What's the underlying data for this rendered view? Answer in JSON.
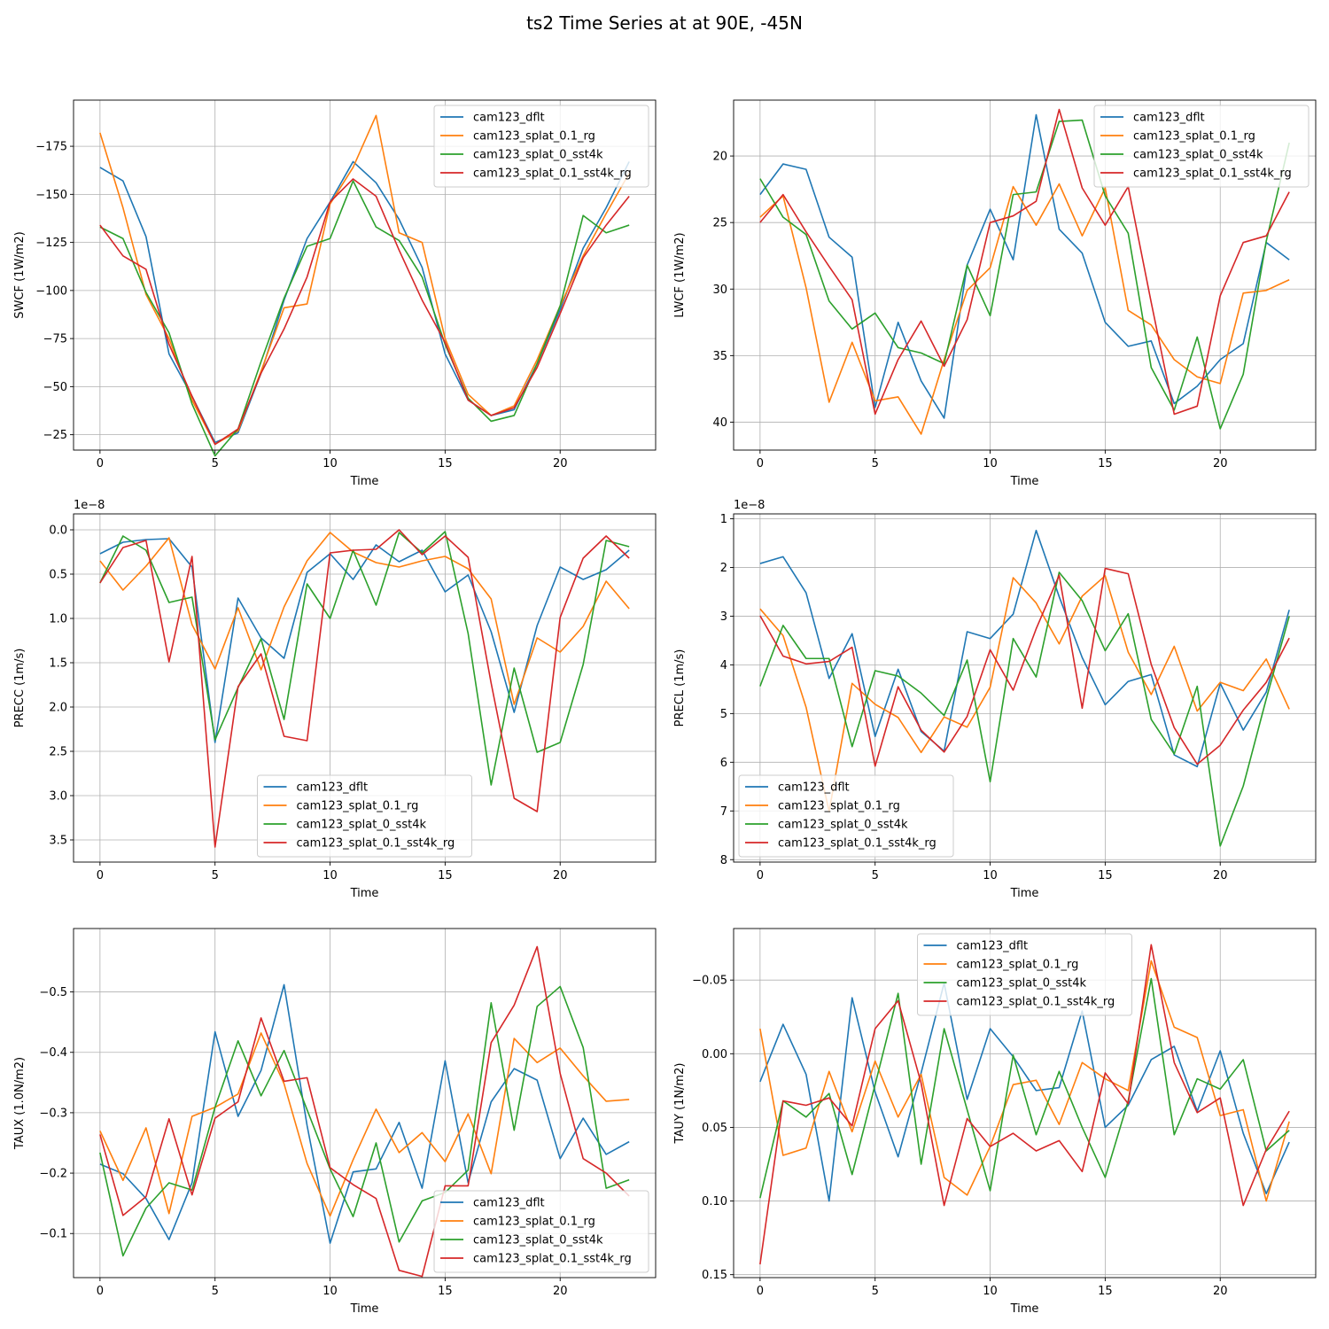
{
  "figure_title": "ts2 Time Series at at 90E, -45N",
  "colors": {
    "cam123_dflt": "#1f77b4",
    "cam123_splat_0.1_rg": "#ff7f0e",
    "cam123_splat_0_sst4k": "#2ca02c",
    "cam123_splat_0.1_sst4k_rg": "#d62728"
  },
  "chart_data": [
    {
      "type": "line",
      "title": "",
      "xlabel": "Time",
      "ylabel": "SWCF (1W/m2)",
      "y_inverted": true,
      "xlim": [
        -1.15,
        24.15
      ],
      "ylim": [
        -17,
        -199
      ],
      "xticks": [
        0,
        5,
        10,
        15,
        20
      ],
      "yticks": [
        -175,
        -150,
        -125,
        -100,
        -75,
        -50,
        -25
      ],
      "ytick_labels": [
        "−175",
        "−150",
        "−125",
        "−100",
        "−75",
        "−50",
        "−25"
      ],
      "offset_text": "",
      "grid": true,
      "legend_loc": "upper right",
      "x": [
        0,
        1,
        2,
        3,
        4,
        5,
        6,
        7,
        8,
        9,
        10,
        11,
        12,
        13,
        14,
        15,
        16,
        17,
        18,
        19,
        20,
        21,
        22,
        23
      ],
      "series": [
        {
          "name": "cam123_dflt",
          "values": [
            -164,
            -157,
            -128,
            -67,
            -45,
            -21,
            -26,
            -57,
            -95,
            -127,
            -146,
            -167,
            -156,
            -137,
            -112,
            -67,
            -43,
            -35,
            -38,
            -62,
            -90,
            -122,
            -143,
            -167
          ]
        },
        {
          "name": "cam123_splat_0.1_rg",
          "values": [
            -182,
            -143,
            -98,
            -75,
            -43,
            -20,
            -27,
            -58,
            -91,
            -93,
            -145,
            -164,
            -191,
            -130,
            -125,
            -75,
            -46,
            -35,
            -40,
            -64,
            -92,
            -118,
            -140,
            -161
          ]
        },
        {
          "name": "cam123_splat_0_sst4k",
          "values": [
            -133,
            -127,
            -99,
            -78,
            -41,
            -14,
            -28,
            -63,
            -96,
            -123,
            -127,
            -157,
            -133,
            -126,
            -107,
            -72,
            -44,
            -32,
            -35,
            -62,
            -92,
            -139,
            -130,
            -134
          ]
        },
        {
          "name": "cam123_splat_0.1_sst4k_rg",
          "values": [
            -134,
            -118,
            -111,
            -72,
            -45,
            -20,
            -28,
            -57,
            -80,
            -107,
            -146,
            -158,
            -149,
            -121,
            -95,
            -73,
            -43,
            -35,
            -39,
            -60,
            -88,
            -117,
            -134,
            -149
          ]
        }
      ]
    },
    {
      "type": "line",
      "title": "",
      "xlabel": "Time",
      "ylabel": "LWCF (1W/m2)",
      "y_inverted": true,
      "xlim": [
        -1.15,
        24.15
      ],
      "ylim": [
        42.1,
        15.8
      ],
      "xticks": [
        0,
        5,
        10,
        15,
        20
      ],
      "yticks": [
        20,
        25,
        30,
        35,
        40
      ],
      "ytick_labels": [
        "20",
        "25",
        "30",
        "35",
        "40"
      ],
      "offset_text": "",
      "grid": true,
      "legend_loc": "upper right",
      "x": [
        0,
        1,
        2,
        3,
        4,
        5,
        6,
        7,
        8,
        9,
        10,
        11,
        12,
        13,
        14,
        15,
        16,
        17,
        18,
        19,
        20,
        21,
        22,
        23
      ],
      "series": [
        {
          "name": "cam123_dflt",
          "values": [
            22.9,
            20.6,
            21.0,
            26.1,
            27.6,
            38.9,
            32.5,
            36.9,
            39.7,
            28.2,
            24.0,
            27.8,
            16.9,
            25.5,
            27.3,
            32.5,
            34.3,
            33.9,
            38.6,
            37.3,
            35.3,
            34.1,
            26.5,
            27.8
          ]
        },
        {
          "name": "cam123_splat_0.1_rg",
          "values": [
            24.6,
            23.0,
            29.9,
            38.5,
            34.0,
            38.4,
            38.1,
            40.9,
            35.3,
            30.1,
            28.4,
            22.3,
            25.2,
            22.1,
            26.0,
            22.4,
            31.6,
            32.7,
            35.3,
            36.6,
            37.1,
            30.3,
            30.1,
            29.3
          ]
        },
        {
          "name": "cam123_splat_0_sst4k",
          "values": [
            21.7,
            24.6,
            25.9,
            30.9,
            33.0,
            31.8,
            34.4,
            34.8,
            35.6,
            28.2,
            32.0,
            22.9,
            22.7,
            17.4,
            17.3,
            23.0,
            25.8,
            35.9,
            39.1,
            33.6,
            40.5,
            36.4,
            26.4,
            19.0
          ]
        },
        {
          "name": "cam123_splat_0.1_sst4k_rg",
          "values": [
            25.0,
            22.9,
            25.7,
            28.3,
            30.8,
            39.4,
            35.3,
            32.4,
            35.8,
            32.3,
            25.0,
            24.5,
            23.4,
            16.5,
            22.4,
            25.2,
            22.3,
            31.0,
            39.4,
            38.8,
            30.5,
            26.5,
            26.0,
            22.7
          ]
        }
      ]
    },
    {
      "type": "line",
      "title": "",
      "xlabel": "Time",
      "ylabel": "PRECC (1m/s)",
      "y_inverted": true,
      "xlim": [
        -1.15,
        24.15
      ],
      "ylim": [
        3.75,
        -0.18
      ],
      "xticks": [
        0,
        5,
        10,
        15,
        20
      ],
      "yticks": [
        0.0,
        0.5,
        1.0,
        1.5,
        2.0,
        2.5,
        3.0,
        3.5
      ],
      "ytick_labels": [
        "0.0",
        "0.5",
        "1.0",
        "1.5",
        "2.0",
        "2.5",
        "3.0",
        "3.5"
      ],
      "offset_text": "1e−8",
      "grid": true,
      "legend_loc": "lower center",
      "x": [
        0,
        1,
        2,
        3,
        4,
        5,
        6,
        7,
        8,
        9,
        10,
        11,
        12,
        13,
        14,
        15,
        16,
        17,
        18,
        19,
        20,
        21,
        22,
        23
      ],
      "series": [
        {
          "name": "cam123_dflt",
          "values": [
            0.27,
            0.14,
            0.11,
            0.1,
            0.42,
            2.4,
            0.77,
            1.22,
            1.45,
            0.48,
            0.27,
            0.56,
            0.17,
            0.36,
            0.23,
            0.7,
            0.51,
            1.15,
            2.06,
            1.08,
            0.42,
            0.56,
            0.45,
            0.23
          ]
        },
        {
          "name": "cam123_splat_0.1_rg",
          "values": [
            0.35,
            0.68,
            0.41,
            0.09,
            1.07,
            1.57,
            0.88,
            1.58,
            0.87,
            0.35,
            0.03,
            0.25,
            0.37,
            0.42,
            0.35,
            0.3,
            0.44,
            0.78,
            1.97,
            1.22,
            1.38,
            1.09,
            0.58,
            0.89
          ]
        },
        {
          "name": "cam123_splat_0_sst4k",
          "values": [
            0.6,
            0.07,
            0.23,
            0.82,
            0.76,
            2.37,
            1.78,
            1.23,
            2.14,
            0.61,
            1.0,
            0.23,
            0.85,
            0.03,
            0.26,
            0.02,
            1.17,
            2.88,
            1.56,
            2.51,
            2.4,
            1.52,
            0.12,
            0.19
          ]
        },
        {
          "name": "cam123_splat_0.1_sst4k_rg",
          "values": [
            0.6,
            0.2,
            0.12,
            1.49,
            0.3,
            3.58,
            1.77,
            1.4,
            2.33,
            2.38,
            0.26,
            0.23,
            0.22,
            0.0,
            0.28,
            0.07,
            0.31,
            1.73,
            3.03,
            3.18,
            0.99,
            0.32,
            0.07,
            0.32
          ]
        }
      ]
    },
    {
      "type": "line",
      "title": "",
      "xlabel": "Time",
      "ylabel": "PRECL (1m/s)",
      "y_inverted": true,
      "xlim": [
        -1.15,
        24.15
      ],
      "ylim": [
        8.05,
        0.9
      ],
      "xticks": [
        0,
        5,
        10,
        15,
        20
      ],
      "yticks": [
        1,
        2,
        3,
        4,
        5,
        6,
        7,
        8
      ],
      "ytick_labels": [
        "1",
        "2",
        "3",
        "4",
        "5",
        "6",
        "7",
        "8"
      ],
      "offset_text": "1e−8",
      "grid": true,
      "legend_loc": "lower left",
      "x": [
        0,
        1,
        2,
        3,
        4,
        5,
        6,
        7,
        8,
        9,
        10,
        11,
        12,
        13,
        14,
        15,
        16,
        17,
        18,
        19,
        20,
        21,
        22,
        23
      ],
      "series": [
        {
          "name": "cam123_dflt",
          "values": [
            1.92,
            1.78,
            2.52,
            4.28,
            3.36,
            5.47,
            4.09,
            5.37,
            5.77,
            3.32,
            3.46,
            2.96,
            1.24,
            2.6,
            3.85,
            4.82,
            4.34,
            4.2,
            5.85,
            6.09,
            4.38,
            5.34,
            4.56,
            2.87
          ]
        },
        {
          "name": "cam123_splat_0.1_rg",
          "values": [
            2.85,
            3.4,
            4.87,
            7.01,
            4.38,
            4.81,
            5.08,
            5.8,
            5.07,
            5.28,
            4.46,
            2.21,
            2.73,
            3.57,
            2.59,
            2.17,
            3.74,
            4.61,
            3.62,
            4.95,
            4.36,
            4.53,
            3.88,
            4.91
          ]
        },
        {
          "name": "cam123_splat_0_sst4k",
          "values": [
            4.44,
            3.19,
            3.87,
            3.87,
            5.68,
            4.12,
            4.23,
            4.58,
            5.04,
            3.9,
            6.4,
            3.46,
            4.25,
            2.1,
            2.68,
            3.71,
            2.95,
            5.12,
            5.83,
            4.44,
            7.72,
            6.49,
            4.7,
            3.0
          ]
        },
        {
          "name": "cam123_splat_0.1_sst4k_rg",
          "values": [
            2.99,
            3.82,
            3.98,
            3.93,
            3.64,
            6.08,
            4.45,
            5.34,
            5.79,
            5.06,
            3.69,
            4.52,
            3.26,
            2.16,
            4.89,
            2.02,
            2.13,
            3.99,
            5.29,
            6.04,
            5.65,
            4.93,
            4.36,
            3.45
          ]
        }
      ]
    },
    {
      "type": "line",
      "title": "",
      "xlabel": "Time",
      "ylabel": "TAUX (1.0N/m2)",
      "y_inverted": true,
      "xlim": [
        -1.15,
        24.15
      ],
      "ylim": [
        -0.027,
        -0.605
      ],
      "xticks": [
        0,
        5,
        10,
        15,
        20
      ],
      "yticks": [
        -0.5,
        -0.4,
        -0.3,
        -0.2,
        -0.1
      ],
      "ytick_labels": [
        "−0.5",
        "−0.4",
        "−0.3",
        "−0.2",
        "−0.1"
      ],
      "offset_text": "",
      "grid": true,
      "legend_loc": "lower right",
      "x": [
        0,
        1,
        2,
        3,
        4,
        5,
        6,
        7,
        8,
        9,
        10,
        11,
        12,
        13,
        14,
        15,
        16,
        17,
        18,
        19,
        20,
        21,
        22,
        23
      ],
      "series": [
        {
          "name": "cam123_dflt",
          "values": [
            -0.215,
            -0.199,
            -0.158,
            -0.09,
            -0.184,
            -0.434,
            -0.294,
            -0.37,
            -0.512,
            -0.279,
            -0.084,
            -0.202,
            -0.207,
            -0.284,
            -0.175,
            -0.386,
            -0.184,
            -0.318,
            -0.373,
            -0.354,
            -0.224,
            -0.291,
            -0.231,
            -0.252
          ]
        },
        {
          "name": "cam123_splat_0.1_rg",
          "values": [
            -0.27,
            -0.188,
            -0.275,
            -0.133,
            -0.294,
            -0.309,
            -0.331,
            -0.432,
            -0.348,
            -0.216,
            -0.129,
            -0.222,
            -0.306,
            -0.234,
            -0.267,
            -0.219,
            -0.298,
            -0.199,
            -0.423,
            -0.383,
            -0.407,
            -0.361,
            -0.319,
            -0.322
          ]
        },
        {
          "name": "cam123_splat_0_sst4k",
          "values": [
            -0.234,
            -0.063,
            -0.142,
            -0.184,
            -0.172,
            -0.309,
            -0.419,
            -0.328,
            -0.403,
            -0.305,
            -0.207,
            -0.128,
            -0.25,
            -0.086,
            -0.154,
            -0.168,
            -0.205,
            -0.482,
            -0.271,
            -0.476,
            -0.509,
            -0.408,
            -0.175,
            -0.189
          ]
        },
        {
          "name": "cam123_splat_0.1_sst4k_rg",
          "values": [
            -0.264,
            -0.13,
            -0.161,
            -0.29,
            -0.164,
            -0.291,
            -0.318,
            -0.457,
            -0.352,
            -0.358,
            -0.209,
            -0.181,
            -0.158,
            -0.039,
            -0.029,
            -0.179,
            -0.179,
            -0.416,
            -0.478,
            -0.575,
            -0.365,
            -0.224,
            -0.2,
            -0.162
          ]
        }
      ]
    },
    {
      "type": "line",
      "title": "",
      "xlabel": "Time",
      "ylabel": "TAUY (1N/m2)",
      "y_inverted": true,
      "xlim": [
        -1.15,
        24.15
      ],
      "ylim": [
        0.152,
        -0.085
      ],
      "xticks": [
        0,
        5,
        10,
        15,
        20
      ],
      "yticks": [
        -0.05,
        0.0,
        0.05,
        0.1,
        0.15
      ],
      "ytick_labels": [
        "−0.05",
        "0.00",
        "0.05",
        "0.10",
        "0.15"
      ],
      "offset_text": "",
      "grid": true,
      "legend_loc": "upper center",
      "x": [
        0,
        1,
        2,
        3,
        4,
        5,
        6,
        7,
        8,
        9,
        10,
        11,
        12,
        13,
        14,
        15,
        16,
        17,
        18,
        19,
        20,
        21,
        22,
        23
      ],
      "series": [
        {
          "name": "cam123_dflt",
          "values": [
            0.019,
            -0.02,
            0.014,
            0.1,
            -0.038,
            0.026,
            0.07,
            0.013,
            -0.048,
            0.031,
            -0.017,
            0.002,
            0.025,
            0.023,
            -0.029,
            0.05,
            0.035,
            0.004,
            -0.005,
            0.039,
            -0.002,
            0.054,
            0.095,
            0.06
          ]
        },
        {
          "name": "cam123_splat_0.1_rg",
          "values": [
            -0.017,
            0.069,
            0.064,
            0.012,
            0.053,
            0.005,
            0.043,
            0.014,
            0.084,
            0.096,
            0.063,
            0.021,
            0.018,
            0.048,
            0.006,
            0.017,
            0.025,
            -0.063,
            -0.018,
            -0.011,
            0.042,
            0.038,
            0.1,
            0.046
          ]
        },
        {
          "name": "cam123_splat_0_sst4k",
          "values": [
            0.098,
            0.032,
            0.043,
            0.027,
            0.082,
            0.021,
            -0.041,
            0.075,
            -0.017,
            0.038,
            0.093,
            0.001,
            0.055,
            0.012,
            0.05,
            0.084,
            0.032,
            -0.051,
            0.055,
            0.017,
            0.024,
            0.004,
            0.066,
            0.052
          ]
        },
        {
          "name": "cam123_splat_0.1_sst4k_rg",
          "values": [
            0.143,
            0.032,
            0.035,
            0.03,
            0.049,
            -0.017,
            -0.036,
            0.02,
            0.103,
            0.044,
            0.063,
            0.054,
            0.066,
            0.059,
            0.08,
            0.013,
            0.034,
            -0.074,
            0.006,
            0.04,
            0.03,
            0.103,
            0.065,
            0.039
          ]
        }
      ]
    }
  ]
}
